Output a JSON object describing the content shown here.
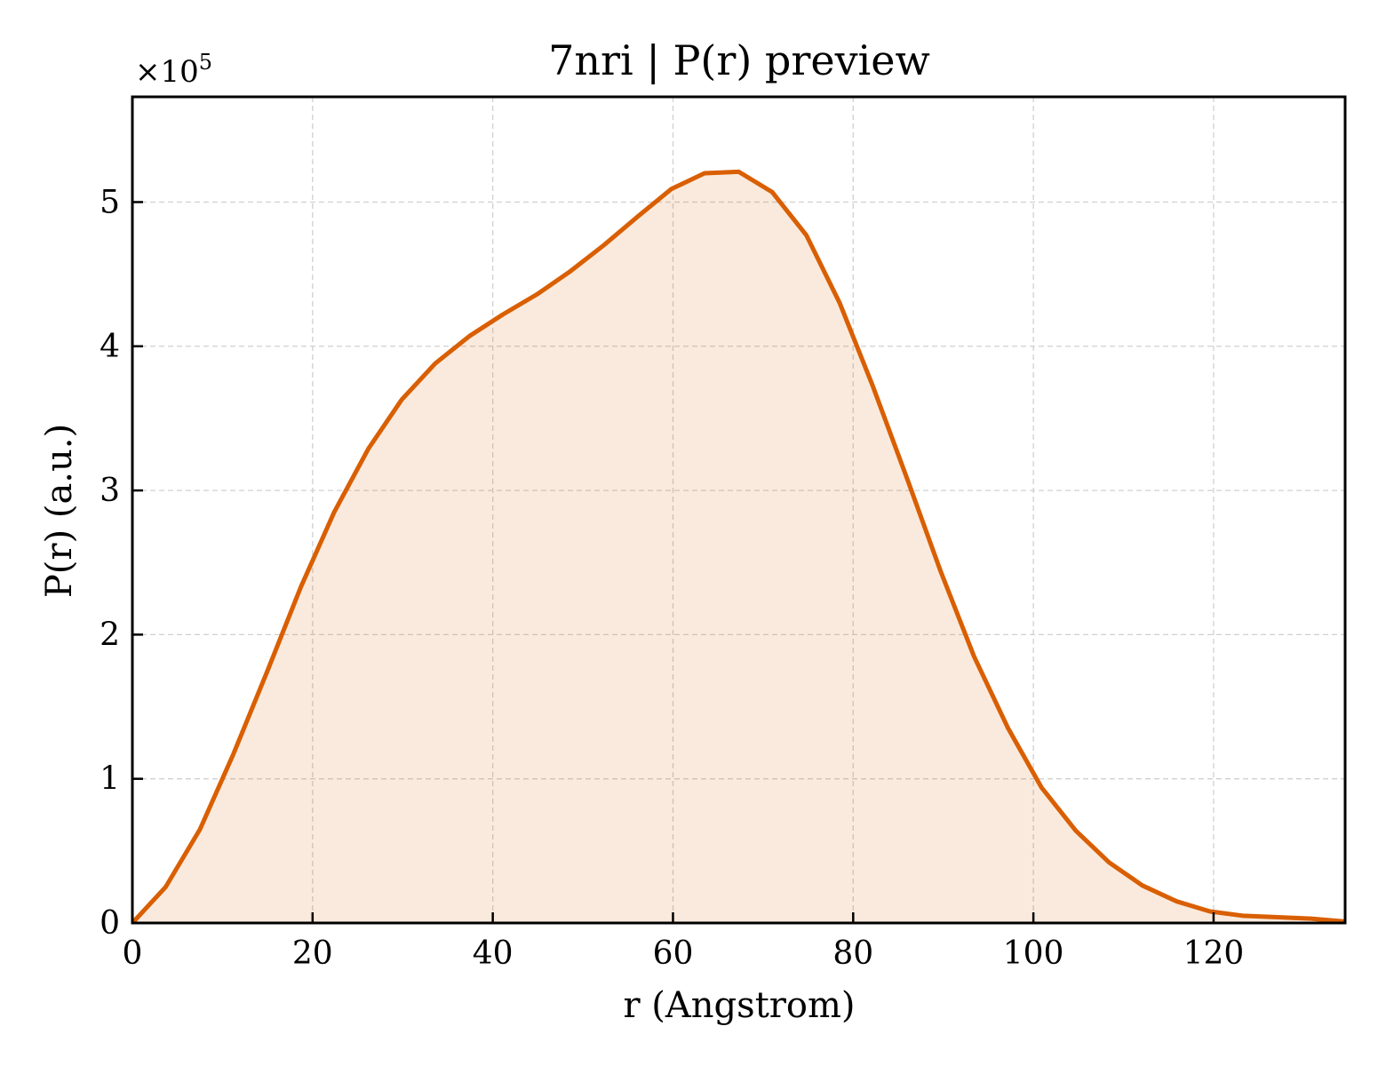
{
  "chart_data": {
    "type": "area",
    "title": "7nri | P(r) preview",
    "xlabel": "r (Angstrom)",
    "ylabel": "P(r) (a.u.)",
    "y_multiplier": {
      "base": "×10",
      "exponent": "5"
    },
    "xlim": [
      0,
      134.6
    ],
    "ylim": [
      0,
      5.73
    ],
    "x_ticks": [
      0,
      20,
      40,
      60,
      80,
      100,
      120
    ],
    "y_ticks": [
      0,
      1,
      2,
      3,
      4,
      5
    ],
    "grid": true,
    "colors": {
      "line": "#d95f02",
      "fill": "#d95f02",
      "fill_opacity": 0.13,
      "grid": "#d0d0d0"
    },
    "series": [
      {
        "x": [
          0,
          3.7,
          7.5,
          11.2,
          15.0,
          18.7,
          22.4,
          26.2,
          29.9,
          33.6,
          37.4,
          41.1,
          44.9,
          48.6,
          52.3,
          56.1,
          59.8,
          63.5,
          67.3,
          71.0,
          74.8,
          78.5,
          82.2,
          86.0,
          89.7,
          93.4,
          97.2,
          100.9,
          104.7,
          108.4,
          112.1,
          115.9,
          119.6,
          123.3,
          127.1,
          130.8,
          134.6
        ],
        "y": [
          0.0,
          0.25,
          0.65,
          1.17,
          1.75,
          2.33,
          2.85,
          3.29,
          3.63,
          3.88,
          4.07,
          4.22,
          4.36,
          4.52,
          4.7,
          4.9,
          5.09,
          5.2,
          5.21,
          5.07,
          4.77,
          4.3,
          3.72,
          3.08,
          2.44,
          1.85,
          1.35,
          0.94,
          0.64,
          0.42,
          0.26,
          0.15,
          0.08,
          0.05,
          0.04,
          0.03,
          0.01
        ]
      }
    ]
  }
}
